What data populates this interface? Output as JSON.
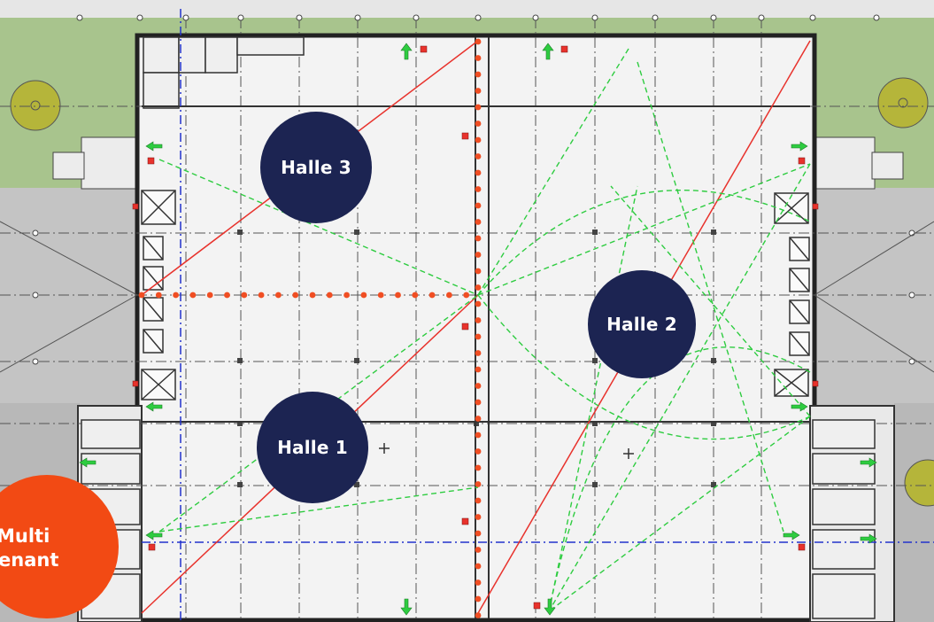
{
  "halls": [
    {
      "id": "halle-3",
      "label": "Halle 3"
    },
    {
      "id": "halle-2",
      "label": "Halle 2"
    },
    {
      "id": "halle-1",
      "label": "Halle 1"
    }
  ],
  "tenant_badge": {
    "line1": "Multi",
    "line2": "enant"
  },
  "colors": {
    "hall_badge": "#1c2452",
    "tenant_badge": "#f24a14",
    "fire_wall_dots": "#f04e23",
    "escape_route": "#2ecc40",
    "diagonal_line": "#e8322c",
    "axis_line": "#2233cc",
    "green_area": "#9fbf86"
  }
}
